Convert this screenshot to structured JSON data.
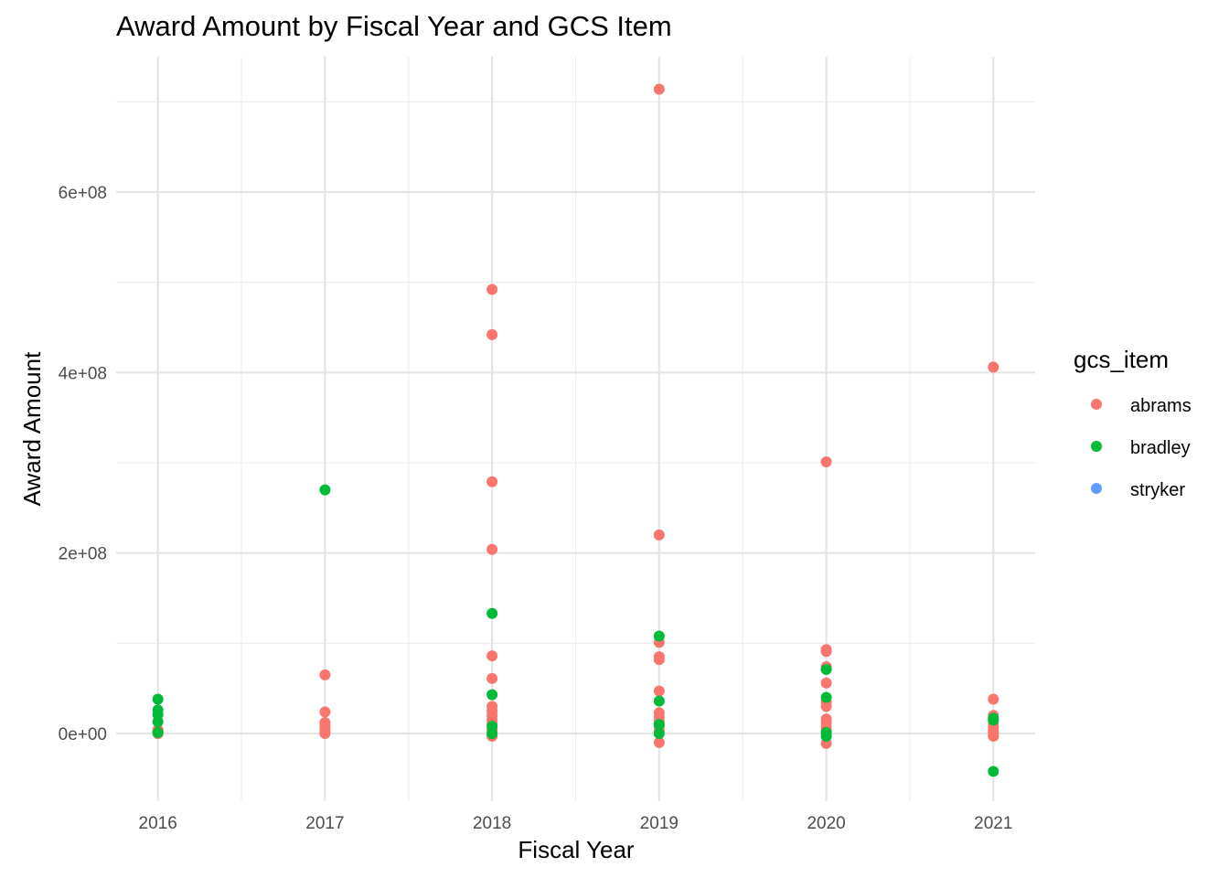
{
  "chart_data": {
    "type": "scatter",
    "title": "Award Amount by Fiscal Year and GCS Item",
    "xlabel": "Fiscal Year",
    "ylabel": "Award Amount",
    "x_ticks": [
      2016,
      2017,
      2018,
      2019,
      2020,
      2021
    ],
    "y_ticks": [
      0,
      200000000,
      400000000,
      600000000
    ],
    "y_tick_labels": [
      "0e+00",
      "2e+08",
      "4e+08",
      "6e+08"
    ],
    "xlim": [
      2015.75,
      2021.25
    ],
    "ylim": [
      -75000000,
      750000000
    ],
    "grid": true,
    "legend": {
      "title": "gcs_item",
      "position": "right"
    },
    "series": [
      {
        "name": "abrams",
        "color": "#F8766D",
        "points": [
          [
            2016,
            0
          ],
          [
            2016,
            2000000
          ],
          [
            2016,
            4000000
          ],
          [
            2017,
            65000000
          ],
          [
            2017,
            24000000
          ],
          [
            2017,
            12000000
          ],
          [
            2017,
            8000000
          ],
          [
            2017,
            4000000
          ],
          [
            2017,
            1000000
          ],
          [
            2017,
            0
          ],
          [
            2018,
            492000000
          ],
          [
            2018,
            442000000
          ],
          [
            2018,
            279000000
          ],
          [
            2018,
            204000000
          ],
          [
            2018,
            86000000
          ],
          [
            2018,
            61000000
          ],
          [
            2018,
            30000000
          ],
          [
            2018,
            25000000
          ],
          [
            2018,
            20000000
          ],
          [
            2018,
            15000000
          ],
          [
            2018,
            10000000
          ],
          [
            2018,
            5000000
          ],
          [
            2018,
            2000000
          ],
          [
            2018,
            -3000000
          ],
          [
            2019,
            714000000
          ],
          [
            2019,
            220000000
          ],
          [
            2019,
            101000000
          ],
          [
            2019,
            85000000
          ],
          [
            2019,
            82000000
          ],
          [
            2019,
            47000000
          ],
          [
            2019,
            23000000
          ],
          [
            2019,
            18000000
          ],
          [
            2019,
            13000000
          ],
          [
            2019,
            8000000
          ],
          [
            2019,
            3000000
          ],
          [
            2019,
            -10000000
          ],
          [
            2020,
            301000000
          ],
          [
            2020,
            93000000
          ],
          [
            2020,
            91000000
          ],
          [
            2020,
            74000000
          ],
          [
            2020,
            56000000
          ],
          [
            2020,
            35000000
          ],
          [
            2020,
            30000000
          ],
          [
            2020,
            16000000
          ],
          [
            2020,
            12000000
          ],
          [
            2020,
            7000000
          ],
          [
            2020,
            3000000
          ],
          [
            2020,
            -11000000
          ],
          [
            2021,
            406000000
          ],
          [
            2021,
            38000000
          ],
          [
            2021,
            20000000
          ],
          [
            2021,
            12000000
          ],
          [
            2021,
            8000000
          ],
          [
            2021,
            4000000
          ],
          [
            2021,
            1000000
          ],
          [
            2021,
            -3000000
          ]
        ]
      },
      {
        "name": "bradley",
        "color": "#00BA38",
        "points": [
          [
            2016,
            38000000
          ],
          [
            2016,
            26000000
          ],
          [
            2016,
            21000000
          ],
          [
            2016,
            13000000
          ],
          [
            2016,
            1000000
          ],
          [
            2017,
            270000000
          ],
          [
            2018,
            133000000
          ],
          [
            2018,
            43000000
          ],
          [
            2018,
            8000000
          ],
          [
            2018,
            0
          ],
          [
            2019,
            108000000
          ],
          [
            2019,
            36000000
          ],
          [
            2019,
            10000000
          ],
          [
            2019,
            0
          ],
          [
            2020,
            71000000
          ],
          [
            2020,
            40000000
          ],
          [
            2020,
            1000000
          ],
          [
            2020,
            -3000000
          ],
          [
            2021,
            17000000
          ],
          [
            2021,
            15000000
          ],
          [
            2021,
            -42000000
          ]
        ]
      },
      {
        "name": "stryker",
        "color": "#619CFF",
        "points": []
      }
    ]
  }
}
